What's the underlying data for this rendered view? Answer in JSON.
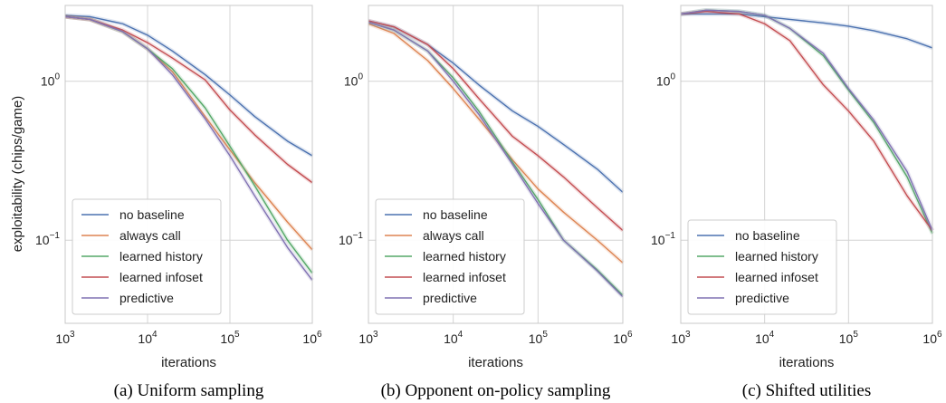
{
  "ylabel_shared": "exploitability (chips/game)",
  "colors": {
    "no baseline": "#4c72b0",
    "always call": "#dd8452",
    "learned history": "#55a868",
    "learned infoset": "#c44e52",
    "predictive": "#8172b3"
  },
  "chart_data": [
    {
      "type": "line",
      "caption": "(a) Uniform sampling",
      "xlabel": "iterations",
      "ylabel": "exploitability (chips/game)",
      "xscale": "log",
      "yscale": "log",
      "xlim": [
        1000,
        1000000
      ],
      "ylim": [
        0.03,
        3.0
      ],
      "xticks": [
        {
          "base": "10",
          "exp": "3"
        },
        {
          "base": "10",
          "exp": "4"
        },
        {
          "base": "10",
          "exp": "5"
        },
        {
          "base": "10",
          "exp": "6"
        }
      ],
      "yticks": [
        {
          "v": 1,
          "label": "10",
          "exp": "0"
        },
        {
          "v": 0.1,
          "label": "10",
          "exp": "−1"
        }
      ],
      "grid": true,
      "legend_position": "lower-left",
      "x": [
        1000,
        2000,
        5000,
        10000,
        20000,
        50000,
        100000,
        200000,
        500000,
        1000000
      ],
      "series": [
        {
          "name": "no baseline",
          "values": [
            2.6,
            2.55,
            2.3,
            1.95,
            1.55,
            1.1,
            0.82,
            0.6,
            0.42,
            0.34
          ]
        },
        {
          "name": "always call",
          "values": [
            2.55,
            2.45,
            2.05,
            1.6,
            1.15,
            0.6,
            0.37,
            0.23,
            0.13,
            0.087
          ]
        },
        {
          "name": "learned history",
          "values": [
            2.55,
            2.45,
            2.05,
            1.6,
            1.2,
            0.68,
            0.39,
            0.22,
            0.1,
            0.062
          ]
        },
        {
          "name": "learned infoset",
          "values": [
            2.55,
            2.45,
            2.1,
            1.75,
            1.4,
            1.02,
            0.66,
            0.46,
            0.3,
            0.23
          ]
        },
        {
          "name": "predictive",
          "values": [
            2.55,
            2.45,
            2.05,
            1.6,
            1.1,
            0.58,
            0.34,
            0.19,
            0.09,
            0.056
          ]
        }
      ],
      "legend": [
        "no baseline",
        "always call",
        "learned history",
        "learned infoset",
        "predictive"
      ]
    },
    {
      "type": "line",
      "caption": "(b) Opponent on-policy sampling",
      "xlabel": "iterations",
      "ylabel": "",
      "xscale": "log",
      "yscale": "log",
      "xlim": [
        1000,
        1000000
      ],
      "ylim": [
        0.03,
        3.0
      ],
      "xticks": [
        {
          "base": "10",
          "exp": "3"
        },
        {
          "base": "10",
          "exp": "4"
        },
        {
          "base": "10",
          "exp": "5"
        },
        {
          "base": "10",
          "exp": "6"
        }
      ],
      "yticks": [
        {
          "v": 1,
          "label": "10",
          "exp": "0"
        },
        {
          "v": 0.1,
          "label": "10",
          "exp": "−1"
        }
      ],
      "grid": true,
      "legend_position": "lower-left",
      "x": [
        1000,
        2000,
        5000,
        10000,
        20000,
        50000,
        100000,
        200000,
        500000,
        1000000
      ],
      "series": [
        {
          "name": "no baseline",
          "values": [
            2.4,
            2.2,
            1.7,
            1.3,
            0.95,
            0.65,
            0.52,
            0.4,
            0.28,
            0.2
          ]
        },
        {
          "name": "always call",
          "values": [
            2.3,
            2.0,
            1.35,
            0.9,
            0.58,
            0.32,
            0.21,
            0.15,
            0.1,
            0.072
          ]
        },
        {
          "name": "learned history",
          "values": [
            2.35,
            2.1,
            1.55,
            1.05,
            0.65,
            0.31,
            0.18,
            0.1,
            0.065,
            0.045
          ]
        },
        {
          "name": "learned infoset",
          "values": [
            2.4,
            2.2,
            1.7,
            1.2,
            0.78,
            0.45,
            0.34,
            0.25,
            0.16,
            0.115
          ]
        },
        {
          "name": "predictive",
          "values": [
            2.35,
            2.1,
            1.55,
            1.0,
            0.62,
            0.3,
            0.17,
            0.1,
            0.064,
            0.044
          ]
        }
      ],
      "legend": [
        "no baseline",
        "always call",
        "learned history",
        "learned infoset",
        "predictive"
      ]
    },
    {
      "type": "line",
      "caption": "(c) Shifted utilities",
      "xlabel": "iterations",
      "ylabel": "",
      "xscale": "log",
      "yscale": "log",
      "xlim": [
        1000,
        1000000
      ],
      "ylim": [
        0.03,
        3.0
      ],
      "xticks": [
        {
          "base": "10",
          "exp": "3"
        },
        {
          "base": "10",
          "exp": "4"
        },
        {
          "base": "10",
          "exp": "5"
        },
        {
          "base": "10",
          "exp": "6"
        }
      ],
      "yticks": [
        {
          "v": 1,
          "label": "10",
          "exp": "0"
        },
        {
          "v": 0.1,
          "label": "10",
          "exp": "−1"
        }
      ],
      "grid": true,
      "legend_position": "lower-left",
      "x": [
        1000,
        2000,
        5000,
        10000,
        20000,
        50000,
        100000,
        200000,
        500000,
        1000000
      ],
      "series": [
        {
          "name": "no baseline",
          "values": [
            2.65,
            2.65,
            2.65,
            2.55,
            2.45,
            2.33,
            2.22,
            2.08,
            1.85,
            1.62
          ]
        },
        {
          "name": "learned history",
          "values": [
            2.65,
            2.8,
            2.75,
            2.6,
            2.15,
            1.45,
            0.88,
            0.55,
            0.25,
            0.11
          ]
        },
        {
          "name": "learned infoset",
          "values": [
            2.65,
            2.75,
            2.65,
            2.3,
            1.8,
            0.95,
            0.65,
            0.42,
            0.19,
            0.115
          ]
        },
        {
          "name": "predictive",
          "values": [
            2.65,
            2.8,
            2.75,
            2.6,
            2.15,
            1.5,
            0.9,
            0.57,
            0.27,
            0.115
          ]
        }
      ],
      "legend": [
        "no baseline",
        "learned history",
        "learned infoset",
        "predictive"
      ]
    }
  ]
}
